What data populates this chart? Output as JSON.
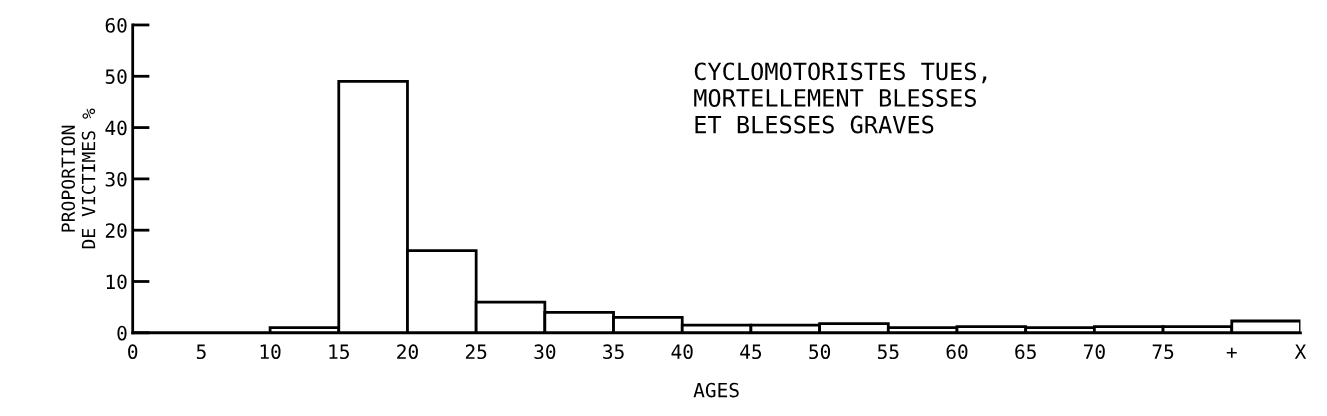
{
  "chart_data": {
    "type": "histogram",
    "bins": [
      0,
      5,
      10,
      15,
      20,
      25,
      30,
      35,
      40,
      45,
      50,
      55,
      60,
      65,
      70,
      75,
      80,
      85
    ],
    "values": [
      0,
      0,
      1,
      49,
      16,
      6,
      4,
      3,
      1.5,
      1.5,
      1.8,
      1,
      1.2,
      1,
      1.2,
      1.2,
      2.3
    ],
    "color": "#ffffff",
    "xlabel": "AGES",
    "ylabel": "PROPORTION\nDE VICTIMES %",
    "annotations": [
      "CYCLOMOTORISTES TUES,\nMORTELLEMENT BLESSES\nET BLESSES GRAVES"
    ],
    "xlim": [
      0,
      85
    ],
    "xticks": [
      0,
      5,
      10,
      15,
      20,
      25,
      30,
      35,
      40,
      45,
      50,
      55,
      60,
      65,
      70,
      75,
      {
        "value": 80,
        "label": "+"
      },
      {
        "value": 85,
        "label": "X"
      }
    ],
    "ylim": [
      0,
      60
    ],
    "yticks": [
      0,
      10,
      20,
      30,
      40,
      50,
      60
    ],
    "grid": false
  }
}
